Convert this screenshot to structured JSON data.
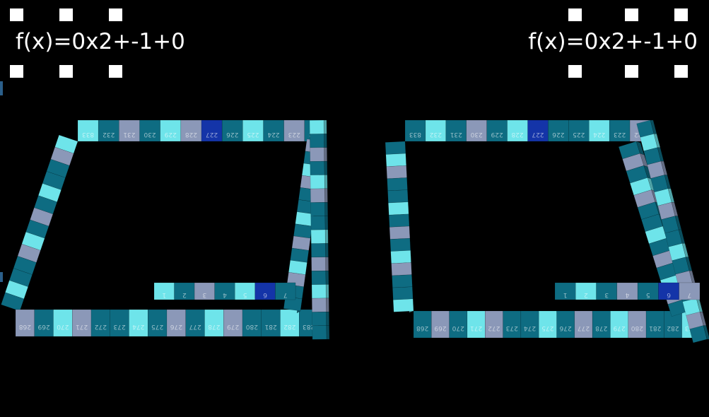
{
  "window": {
    "background": "#000000"
  },
  "panels": [
    {
      "id": "left",
      "label": "f(x)=0x2+-1+0"
    },
    {
      "id": "right",
      "label": "f(x)=0x2+-1+0"
    }
  ],
  "colors": {
    "teal": "#0e6c82",
    "cyan": "#6ee4ea",
    "slate": "#8b98b8",
    "highlight": "#1434a8",
    "handle": "#ffffff"
  },
  "cube_labels_top": [
    "833",
    "232",
    "231",
    "230",
    "229",
    "228",
    "227",
    "226",
    "225",
    "224",
    "223",
    "222"
  ],
  "cube_labels_bottom": [
    "268",
    "269",
    "270",
    "271",
    "272",
    "273",
    "274",
    "275",
    "276",
    "277",
    "278",
    "279",
    "280",
    "281",
    "282",
    "283"
  ],
  "cube_labels_inner": [
    "1",
    "2",
    "3",
    "4",
    "5",
    "6",
    "7"
  ],
  "icons": {
    "handle": "square-handle-icon"
  }
}
